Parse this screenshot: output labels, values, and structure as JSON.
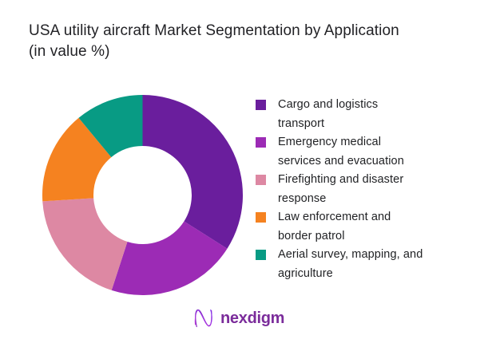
{
  "chart_data": {
    "type": "pie",
    "subtype": "donut",
    "title": "USA utility aircraft Market Segmentation by Application (in value %)",
    "title_display": "USA utility aircraft Market Segmentation by Application\n(in value %)",
    "unit": "percent of market value",
    "start_angle_deg": 0,
    "direction": "clockwise",
    "inner_radius_ratio": 0.49,
    "legend_position": "right",
    "values_shown_on_chart": false,
    "values_are_estimates_from_arc_angles": true,
    "segments": [
      {
        "label": "Cargo and logistics transport",
        "label_display": "Cargo and logistics\ntransport",
        "value": 34,
        "color": "#6A1E9D"
      },
      {
        "label": "Emergency medical services and evacuation",
        "label_display": "Emergency medical\nservices and evacuation",
        "value": 21,
        "color": "#9C2BB5"
      },
      {
        "label": "Firefighting and disaster response",
        "label_display": "Firefighting and disaster\nresponse",
        "value": 19,
        "color": "#DD88A3"
      },
      {
        "label": "Law enforcement and border patrol",
        "label_display": "Law enforcement and\nborder patrol",
        "value": 15,
        "color": "#F58220"
      },
      {
        "label": "Aerial survey, mapping, and agriculture",
        "label_display": "Aerial survey, mapping, and\nagriculture",
        "value": 11,
        "color": "#089B84"
      }
    ]
  },
  "footer": {
    "logo_text": "nexdigm"
  }
}
